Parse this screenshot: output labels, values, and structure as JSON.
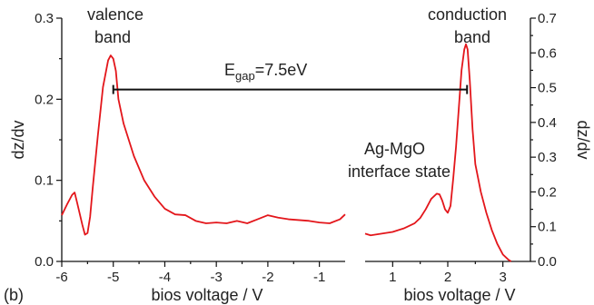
{
  "chart_data": {
    "type": "line",
    "panel_label": "(b)",
    "annotations": {
      "valence": [
        "valence",
        "band"
      ],
      "conduction": [
        "conduction",
        "band"
      ],
      "egap_main": "E",
      "egap_sub": "gap",
      "egap_value": "=7.5eV",
      "interface": [
        "Ag-MgO",
        "interface state"
      ],
      "egap_from": -5.0,
      "egap_to": 2.35,
      "egap_y": 0.212
    },
    "left_panel": {
      "xlabel": "bios voltage / V",
      "ylabel": "dz/dv",
      "xlim": [
        -6,
        -0.5
      ],
      "ylim": [
        0,
        0.3
      ],
      "xticks": [
        -6,
        -5,
        -4,
        -3,
        -2,
        -1
      ],
      "yticks": [
        0.0,
        0.1,
        0.2,
        0.3
      ],
      "ytick_labels": [
        "0.0",
        "0.1",
        "0.2",
        "0.3"
      ],
      "series": {
        "x": [
          -6.0,
          -5.9,
          -5.8,
          -5.75,
          -5.7,
          -5.6,
          -5.55,
          -5.5,
          -5.45,
          -5.4,
          -5.3,
          -5.2,
          -5.1,
          -5.05,
          -5.0,
          -4.95,
          -4.9,
          -4.8,
          -4.6,
          -4.4,
          -4.2,
          -4.0,
          -3.8,
          -3.6,
          -3.4,
          -3.2,
          -3.0,
          -2.8,
          -2.6,
          -2.4,
          -2.2,
          -2.0,
          -1.8,
          -1.6,
          -1.4,
          -1.2,
          -1.0,
          -0.8,
          -0.6,
          -0.5
        ],
        "y": [
          0.057,
          0.07,
          0.082,
          0.085,
          0.072,
          0.045,
          0.033,
          0.035,
          0.055,
          0.09,
          0.155,
          0.215,
          0.248,
          0.254,
          0.25,
          0.235,
          0.2,
          0.17,
          0.13,
          0.1,
          0.08,
          0.065,
          0.058,
          0.057,
          0.05,
          0.047,
          0.048,
          0.047,
          0.05,
          0.047,
          0.052,
          0.057,
          0.054,
          0.052,
          0.051,
          0.05,
          0.048,
          0.047,
          0.052,
          0.058
        ]
      }
    },
    "right_panel": {
      "xlabel": "bios voltage / V",
      "ylabel": "dz/dv",
      "xlim": [
        0.5,
        3.5
      ],
      "ylim": [
        0,
        0.7
      ],
      "xticks": [
        1,
        2,
        3
      ],
      "yticks": [
        0.0,
        0.1,
        0.2,
        0.3,
        0.4,
        0.5,
        0.6,
        0.7
      ],
      "ytick_labels": [
        "0.0",
        "0.1",
        "0.2",
        "0.3",
        "0.4",
        "0.5",
        "0.6",
        "0.7"
      ],
      "series": {
        "x": [
          0.5,
          0.6,
          0.8,
          1.0,
          1.2,
          1.4,
          1.5,
          1.6,
          1.7,
          1.8,
          1.85,
          1.9,
          1.95,
          2.0,
          2.05,
          2.1,
          2.15,
          2.2,
          2.25,
          2.3,
          2.33,
          2.36,
          2.4,
          2.45,
          2.5,
          2.6,
          2.7,
          2.8,
          2.9,
          3.0,
          3.1,
          3.15
        ],
        "y": [
          0.08,
          0.075,
          0.08,
          0.085,
          0.095,
          0.11,
          0.125,
          0.15,
          0.18,
          0.195,
          0.193,
          0.175,
          0.15,
          0.14,
          0.16,
          0.24,
          0.33,
          0.44,
          0.55,
          0.61,
          0.625,
          0.61,
          0.52,
          0.38,
          0.28,
          0.2,
          0.14,
          0.09,
          0.05,
          0.02,
          0.005,
          0.0
        ]
      }
    }
  }
}
